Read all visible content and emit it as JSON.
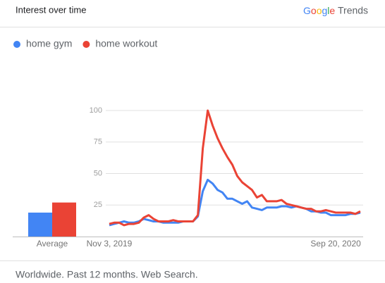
{
  "header": {
    "title": "Interest over time",
    "logo": {
      "brand": "Google",
      "product": "Trends"
    }
  },
  "chart_data": {
    "type": "line",
    "categories": [
      "Nov 3, 2019",
      null,
      null,
      null,
      null,
      null,
      null,
      null,
      null,
      null,
      null,
      null,
      null,
      null,
      null,
      null,
      null,
      null,
      null,
      null,
      null,
      null,
      null,
      null,
      null,
      null,
      null,
      null,
      null,
      null,
      null,
      null,
      null,
      null,
      null,
      null,
      null,
      null,
      null,
      null,
      null,
      null,
      null,
      null,
      null,
      null,
      "Sep 20, 2020",
      null,
      null,
      null,
      null,
      null
    ],
    "series": [
      {
        "name": "home gym",
        "color": "#4285f4",
        "average": 19,
        "values": [
          9,
          10,
          11,
          12,
          11,
          11,
          12,
          14,
          13,
          12,
          12,
          11,
          11,
          11,
          11,
          12,
          12,
          12,
          16,
          36,
          45,
          42,
          37,
          35,
          30,
          30,
          28,
          26,
          28,
          23,
          22,
          21,
          23,
          23,
          23,
          24,
          24,
          23,
          24,
          23,
          22,
          20,
          20,
          19,
          19,
          17,
          17,
          17,
          17,
          18,
          18,
          19
        ]
      },
      {
        "name": "home workout",
        "color": "#ea4335",
        "average": 27,
        "values": [
          10,
          11,
          11,
          9,
          10,
          10,
          11,
          15,
          17,
          14,
          12,
          12,
          12,
          13,
          12,
          12,
          12,
          12,
          17,
          70,
          100,
          88,
          78,
          70,
          63,
          57,
          48,
          43,
          40,
          37,
          31,
          33,
          28,
          28,
          28,
          29,
          26,
          25,
          24,
          23,
          22,
          22,
          20,
          20,
          21,
          20,
          19,
          19,
          19,
          19,
          18,
          20
        ]
      }
    ],
    "average_label": "Average",
    "ylim": [
      0,
      100
    ],
    "yticks": [
      25,
      50,
      75,
      100
    ],
    "grid": true
  },
  "footer": "Worldwide. Past 12 months. Web Search."
}
